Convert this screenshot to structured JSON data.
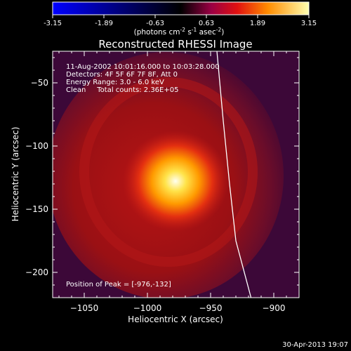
{
  "colorbar": {
    "ticks": [
      "-3.15",
      "-1.89",
      "-0.63",
      "0.63",
      "1.89",
      "3.15"
    ],
    "units_main": "(photons cm",
    "units_sup1": "-2",
    "units_mid": " s",
    "units_sup2": "-1",
    "units_end": " asec",
    "units_sup3": "-2",
    "units_close": ")"
  },
  "chart_data": {
    "type": "heatmap",
    "title": "Reconstructed RHESSI Image",
    "xlabel": "Heliocentric X (arcsec)",
    "ylabel": "Heliocentric Y (arcsec)",
    "xlim": [
      -1075,
      -880
    ],
    "ylim": [
      -220,
      -25
    ],
    "x_ticks": [
      {
        "value": -1050,
        "label": "−1050"
      },
      {
        "value": -1000,
        "label": "−1000"
      },
      {
        "value": -950,
        "label": "−950"
      },
      {
        "value": -900,
        "label": "−900"
      }
    ],
    "y_ticks": [
      {
        "value": -50,
        "label": "−50"
      },
      {
        "value": -100,
        "label": "−100"
      },
      {
        "value": -150,
        "label": "−150"
      },
      {
        "value": -200,
        "label": "−200"
      }
    ],
    "color_range": [
      -3.15,
      3.15
    ],
    "peak": {
      "x": -976,
      "y": -132
    },
    "annotations": {
      "line1": "11-Aug-2002 10:01:16.000 to 10:03:28.000",
      "line2": "Detectors: 4F 5F 6F 7F 8F, Att 0",
      "line3": "Energy Range: 3.0 - 6.0 keV",
      "line4": "Clean     Total counts: 2.36E+05",
      "peak_text": "Position of Peak = [-976,-132]"
    },
    "limb": [
      [
        -945,
        -25
      ],
      [
        -940,
        -80
      ],
      [
        -935,
        -130
      ],
      [
        -930,
        -175
      ],
      [
        -918,
        -220
      ]
    ]
  },
  "footer": {
    "timestamp": "30-Apr-2013 19:07"
  }
}
